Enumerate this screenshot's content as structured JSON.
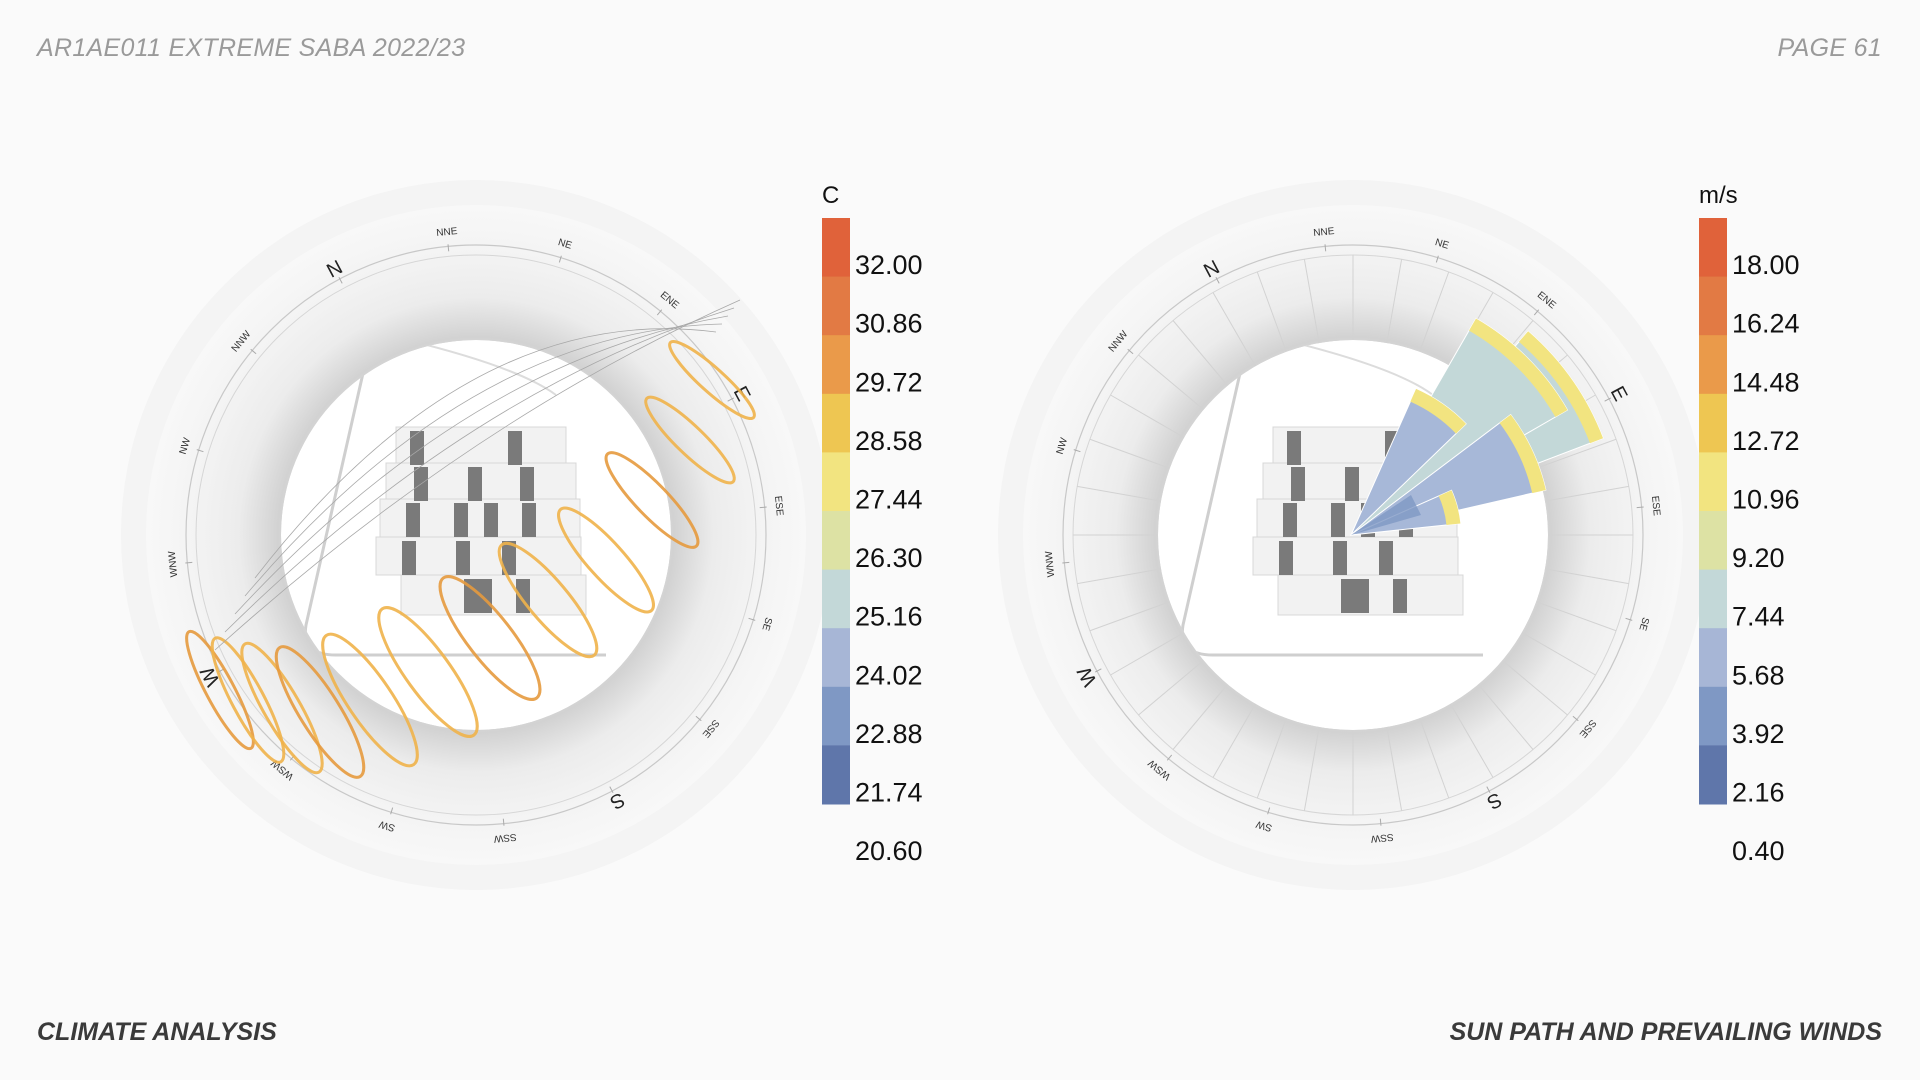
{
  "header": {
    "left": "AR1AE011 EXTREME SABA 2022/23",
    "right": "PAGE 61"
  },
  "footer": {
    "left": "CLIMATE ANALYSIS",
    "right": "SUN PATH AND PREVAILING WINDS"
  },
  "compass_labels": [
    "N",
    "NNE",
    "NE",
    "ENE",
    "E",
    "ESE",
    "SE",
    "SSE",
    "S",
    "SSW",
    "SW",
    "WSW",
    "W",
    "WNW",
    "NW",
    "NNW"
  ],
  "colors": {
    "scale": [
      "#e0623a",
      "#e27a44",
      "#ea9a4a",
      "#eec652",
      "#f2e480",
      "#dde2a4",
      "#c3d8d8",
      "#a7b6d6",
      "#7f98c4",
      "#5f76aa"
    ],
    "sun_path": "#efb24a",
    "wind_inner": "#a7b8d8",
    "wind_mid": "#c3d8d8",
    "wind_tip": "#f2e480"
  },
  "legends": [
    {
      "unit": "C",
      "ticks": [
        "32.00",
        "30.86",
        "29.72",
        "28.58",
        "27.44",
        "26.30",
        "25.16",
        "24.02",
        "22.88",
        "21.74",
        "20.60"
      ]
    },
    {
      "unit": "m/s",
      "ticks": [
        "18.00",
        "16.24",
        "14.48",
        "12.72",
        "10.96",
        "9.20",
        "7.44",
        "5.68",
        "3.92",
        "2.16",
        "0.40"
      ]
    }
  ]
}
